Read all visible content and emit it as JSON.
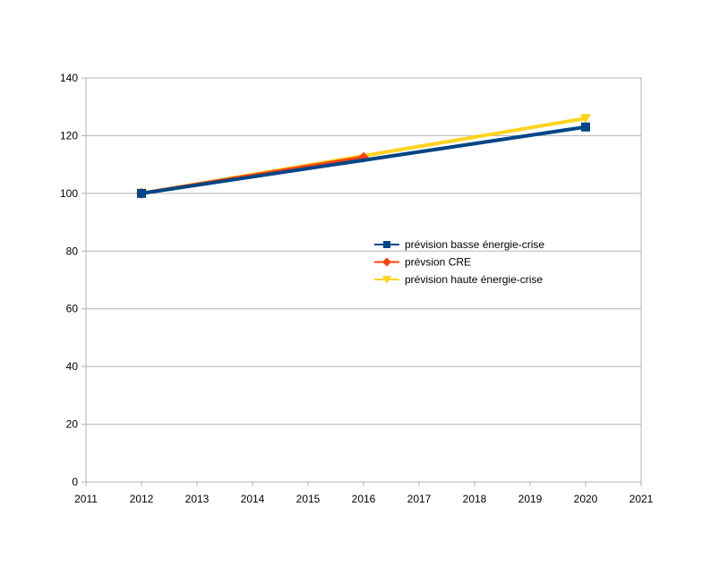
{
  "chart_data": {
    "type": "line",
    "title": "",
    "xlabel": "",
    "ylabel": "",
    "xlim": [
      2011,
      2021
    ],
    "ylim": [
      0,
      140
    ],
    "xticks": [
      "2011",
      "2012",
      "2013",
      "2014",
      "2015",
      "2016",
      "2017",
      "2018",
      "2019",
      "2020",
      "2021"
    ],
    "yticks": [
      "0",
      "20",
      "40",
      "60",
      "80",
      "100",
      "120",
      "140"
    ],
    "grid": "horizontal",
    "legend_position": "center-right",
    "series": [
      {
        "name": "prévision haute énergie-crise",
        "color": "#ffd320",
        "marker": "triangle-down",
        "x": [
          2012,
          2020
        ],
        "y": [
          100,
          126
        ]
      },
      {
        "name": "prévsion CRE",
        "color": "#ff420e",
        "marker": "diamond",
        "x": [
          2012,
          2016
        ],
        "y": [
          100,
          112.5
        ]
      },
      {
        "name": "prévision basse énergie-crise",
        "color": "#004586",
        "marker": "square",
        "x": [
          2012,
          2020
        ],
        "y": [
          100,
          123
        ]
      }
    ],
    "legend_order": [
      2,
      1,
      0
    ]
  }
}
